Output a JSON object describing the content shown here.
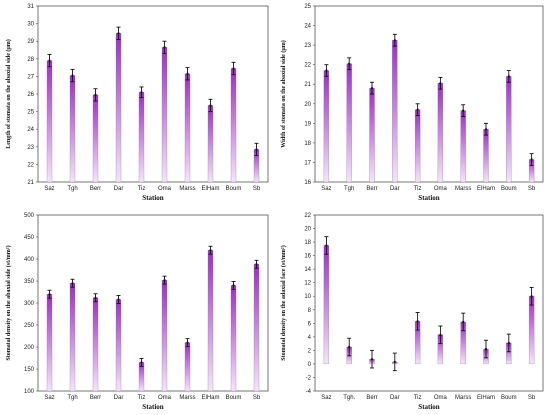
{
  "bar_gradient": {
    "top": "#9a2fc2",
    "bottom": "#f3e6f9"
  },
  "chart_data": [
    {
      "type": "bar",
      "categories": [
        "Saz",
        "Tgh",
        "Berr",
        "Dar",
        "Tiz",
        "Oma",
        "Marss",
        "ElHam",
        "Boum",
        "Sb"
      ],
      "values": [
        27.9,
        27.05,
        25.95,
        29.45,
        26.1,
        28.65,
        27.15,
        25.35,
        27.45,
        22.85
      ],
      "errors": [
        0.35,
        0.35,
        0.35,
        0.35,
        0.3,
        0.35,
        0.35,
        0.35,
        0.35,
        0.35
      ],
      "xlabel": "Station",
      "ylabel": "Length of stomata on the abaxial side (μm)",
      "ylim": [
        21,
        31
      ],
      "yticks": [
        21,
        22,
        23,
        24,
        25,
        26,
        27,
        28,
        29,
        30,
        31
      ]
    },
    {
      "type": "bar",
      "categories": [
        "Saz",
        "Tgh",
        "Berr",
        "Dar",
        "Tiz",
        "Oma",
        "Marss",
        "ElHam",
        "Boum",
        "Sb"
      ],
      "values": [
        21.7,
        22.05,
        20.8,
        23.25,
        19.7,
        21.05,
        19.65,
        18.7,
        21.4,
        17.15
      ],
      "errors": [
        0.3,
        0.3,
        0.3,
        0.3,
        0.3,
        0.3,
        0.3,
        0.3,
        0.3,
        0.3
      ],
      "xlabel": "Station",
      "ylabel": "Width of stomata on the abaxial side (μm)",
      "ylim": [
        16,
        25
      ],
      "yticks": [
        16,
        17,
        18,
        19,
        20,
        21,
        22,
        23,
        24,
        25
      ]
    },
    {
      "type": "bar",
      "categories": [
        "Saz",
        "Tgh",
        "Berr",
        "Dar",
        "Tiz",
        "Oma",
        "Marss",
        "ElHam",
        "Boum",
        "Sb"
      ],
      "values": [
        320,
        345,
        312,
        308,
        165,
        352,
        210,
        420,
        340,
        388
      ],
      "errors": [
        9,
        9,
        9,
        9,
        9,
        9,
        9,
        9,
        9,
        9
      ],
      "xlabel": "Station",
      "ylabel": "Stomatal density on the abaxial side (st/mm²)",
      "ylim": [
        100,
        500
      ],
      "yticks": [
        100,
        150,
        200,
        250,
        300,
        350,
        400,
        450,
        500
      ]
    },
    {
      "type": "bar",
      "categories": [
        "Saz",
        "Tgh.",
        "Berr",
        "Dar",
        "Tiz",
        "Oma",
        "Marss",
        "ElHam",
        "Boum",
        "Sb"
      ],
      "values": [
        17.5,
        2.5,
        0.7,
        0.3,
        6.3,
        4.3,
        6.2,
        2.2,
        3.1,
        10.0
      ],
      "errors": [
        1.3,
        1.3,
        1.3,
        1.3,
        1.3,
        1.3,
        1.3,
        1.3,
        1.3,
        1.3
      ],
      "xlabel": "Station",
      "ylabel": "Stomatal density on the adaxial face (st/mm²)",
      "ylim": [
        -4,
        22
      ],
      "yticks": [
        -4,
        -2,
        0,
        2,
        4,
        6,
        8,
        10,
        12,
        14,
        16,
        18,
        20,
        22
      ]
    }
  ]
}
